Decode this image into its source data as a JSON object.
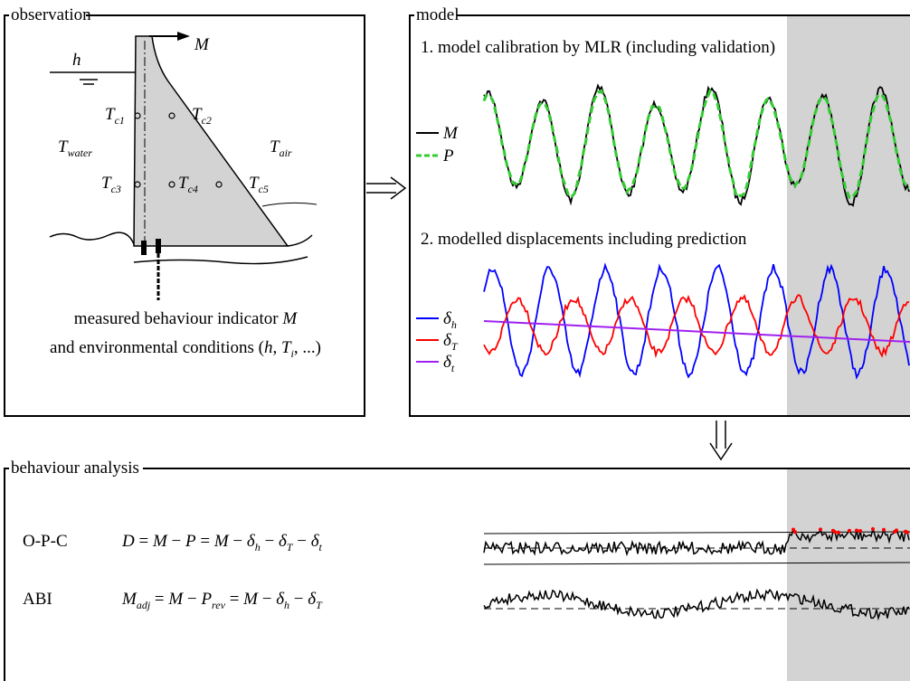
{
  "observation": {
    "title": "observation",
    "labels": [
      [
        {
          "text": "h",
          "italic": true
        }
      ],
      [
        {
          "text": "M",
          "italic": true
        }
      ],
      [
        {
          "text": "T",
          "italic": true,
          "sub": "c1"
        }
      ],
      [
        {
          "text": "T",
          "italic": true,
          "sub": "c2"
        }
      ],
      [
        {
          "text": "T",
          "italic": true,
          "sub": "water"
        }
      ],
      [
        {
          "text": "T",
          "italic": true,
          "sub": "air"
        }
      ],
      [
        {
          "text": "T",
          "italic": true,
          "sub": "c3"
        }
      ],
      [
        {
          "text": "T",
          "italic": true,
          "sub": "c4"
        }
      ],
      [
        {
          "text": "T",
          "italic": true,
          "sub": "c5"
        }
      ]
    ],
    "caption": [
      [
        {
          "text": "measured behaviour indicator "
        },
        {
          "text": "M",
          "italic": true
        }
      ],
      [
        {
          "text": "and environmental conditions  ("
        },
        {
          "text": "h",
          "italic": true
        },
        {
          "text": ", "
        },
        {
          "text": "T",
          "italic": true,
          "sub": "i"
        },
        {
          "text": ", ...)"
        }
      ]
    ]
  },
  "model": {
    "title": "model",
    "step1": "1. model calibration by MLR (including validation)",
    "legend1": [
      [
        {
          "text": "M",
          "italic": true
        }
      ],
      [
        {
          "text": "P",
          "italic": true
        }
      ]
    ],
    "step2": "2. modelled displacements including prediction",
    "legend2": [
      [
        {
          "text": "δ",
          "italic": true,
          "sub": "h"
        }
      ],
      [
        {
          "text": "δ",
          "italic": true,
          "sub": "T"
        }
      ],
      [
        {
          "text": "δ",
          "italic": true,
          "sub": "t"
        }
      ]
    ]
  },
  "analysis": {
    "title": "behaviour analysis",
    "rows": [
      {
        "name": "O-P-C",
        "equation": [
          {
            "text": "D",
            "italic": true
          },
          {
            "text": " = "
          },
          {
            "text": "M",
            "italic": true
          },
          {
            "text": " − "
          },
          {
            "text": "P",
            "italic": true
          },
          {
            "text": " = "
          },
          {
            "text": "M",
            "italic": true
          },
          {
            "text": " − "
          },
          {
            "text": "δ",
            "italic": true,
            "sub": "h"
          },
          {
            "text": " − "
          },
          {
            "text": "δ",
            "italic": true,
            "sub": "T"
          },
          {
            "text": " − "
          },
          {
            "text": "δ",
            "italic": true,
            "sub": "t"
          }
        ]
      },
      {
        "name": "ABI",
        "equation": [
          {
            "text": "M",
            "italic": true,
            "sub": "adj"
          },
          {
            "text": "  = "
          },
          {
            "text": "M",
            "italic": true
          },
          {
            "text": " − "
          },
          {
            "text": "P",
            "italic": true,
            "sub": "rev"
          },
          {
            "text": " = "
          },
          {
            "text": "M",
            "italic": true
          },
          {
            "text": " − "
          },
          {
            "text": "δ",
            "italic": true,
            "sub": "h"
          },
          {
            "text": " − "
          },
          {
            "text": "δ",
            "italic": true,
            "sub": "T"
          }
        ]
      }
    ]
  }
}
